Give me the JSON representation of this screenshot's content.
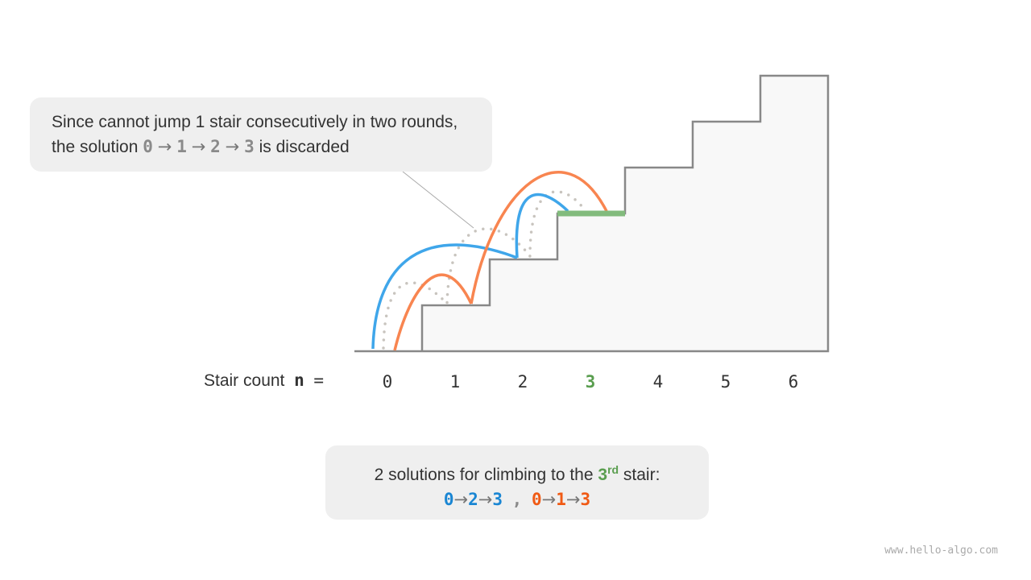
{
  "callout": {
    "text_before": "Since cannot jump 1 stair consecutively in two rounds, the solution",
    "path": [
      "0",
      "1",
      "2",
      "3"
    ],
    "text_after": "is discarded"
  },
  "axis": {
    "label": "Stair count",
    "var": "n",
    "eq": "=",
    "ticks": [
      "0",
      "1",
      "2",
      "3",
      "4",
      "5",
      "6"
    ],
    "highlight": "3"
  },
  "result": {
    "text_before": "2 solutions for climbing to the",
    "stair": "3",
    "sup": "rd",
    "text_after": "stair:",
    "solution_1": [
      "0",
      "2",
      "3"
    ],
    "separator": ",",
    "solution_2": [
      "0",
      "1",
      "3"
    ]
  },
  "arrow": "→",
  "colors": {
    "blue": "#3fa6ea",
    "orange": "#f88550",
    "green": "#82bb7d",
    "dotted": "#c8c4be",
    "stairs": "#888888"
  },
  "watermark": "www.hello-algo.com"
}
